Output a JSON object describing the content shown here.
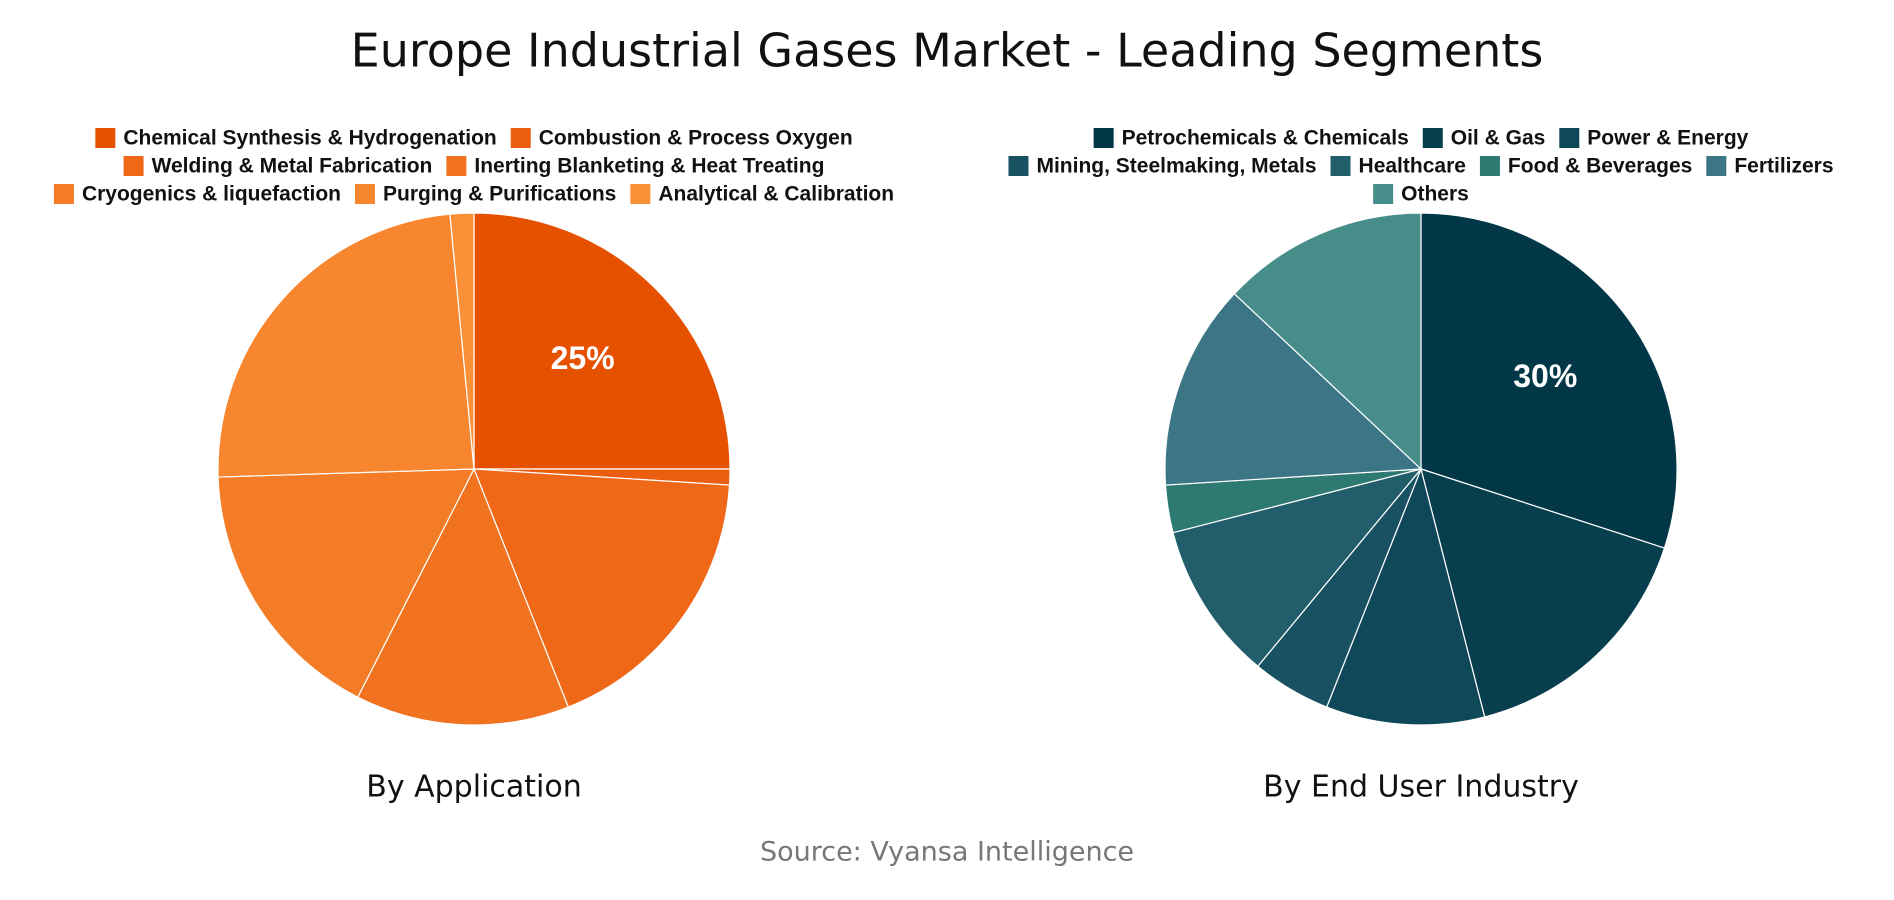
{
  "title": "Europe Industrial Gases Market - Leading Segments",
  "source": "Source: Vyansa Intelligence",
  "chart_data": [
    {
      "type": "pie",
      "title": "By Application",
      "categories": [
        "Chemical Synthesis & Hydrogenation",
        "Combustion & Process Oxygen",
        "Welding & Metal Fabrication",
        "Inerting Blanketing & Heat Treating",
        "Cryogenics & liquefaction",
        "Purging & Purifications",
        "Analytical & Calibration"
      ],
      "values": [
        25,
        1,
        18,
        13.5,
        17,
        24,
        1.5
      ],
      "value_labels": [
        "25%",
        null,
        null,
        null,
        null,
        null,
        null
      ],
      "colors": [
        "#e65100",
        "#eb5e10",
        "#ee6818",
        "#f1721f",
        "#f47c27",
        "#f7862f",
        "#fa9038"
      ]
    },
    {
      "type": "pie",
      "title": "By End User Industry",
      "categories": [
        "Petrochemicals & Chemicals",
        "Oil & Gas",
        "Power & Energy",
        "Mining, Steelmaking, Metals",
        "Healthcare",
        "Food & Beverages",
        "Fertilizers",
        "Others"
      ],
      "values": [
        30,
        16,
        10,
        5,
        10,
        3,
        13,
        13
      ],
      "value_labels": [
        "30%",
        null,
        null,
        null,
        null,
        null,
        null,
        null
      ],
      "colors": [
        "#023747",
        "#083f4f",
        "#0f4858",
        "#185262",
        "#215d6b",
        "#2e7a72",
        "#3c7585",
        "#478e8a"
      ]
    }
  ]
}
